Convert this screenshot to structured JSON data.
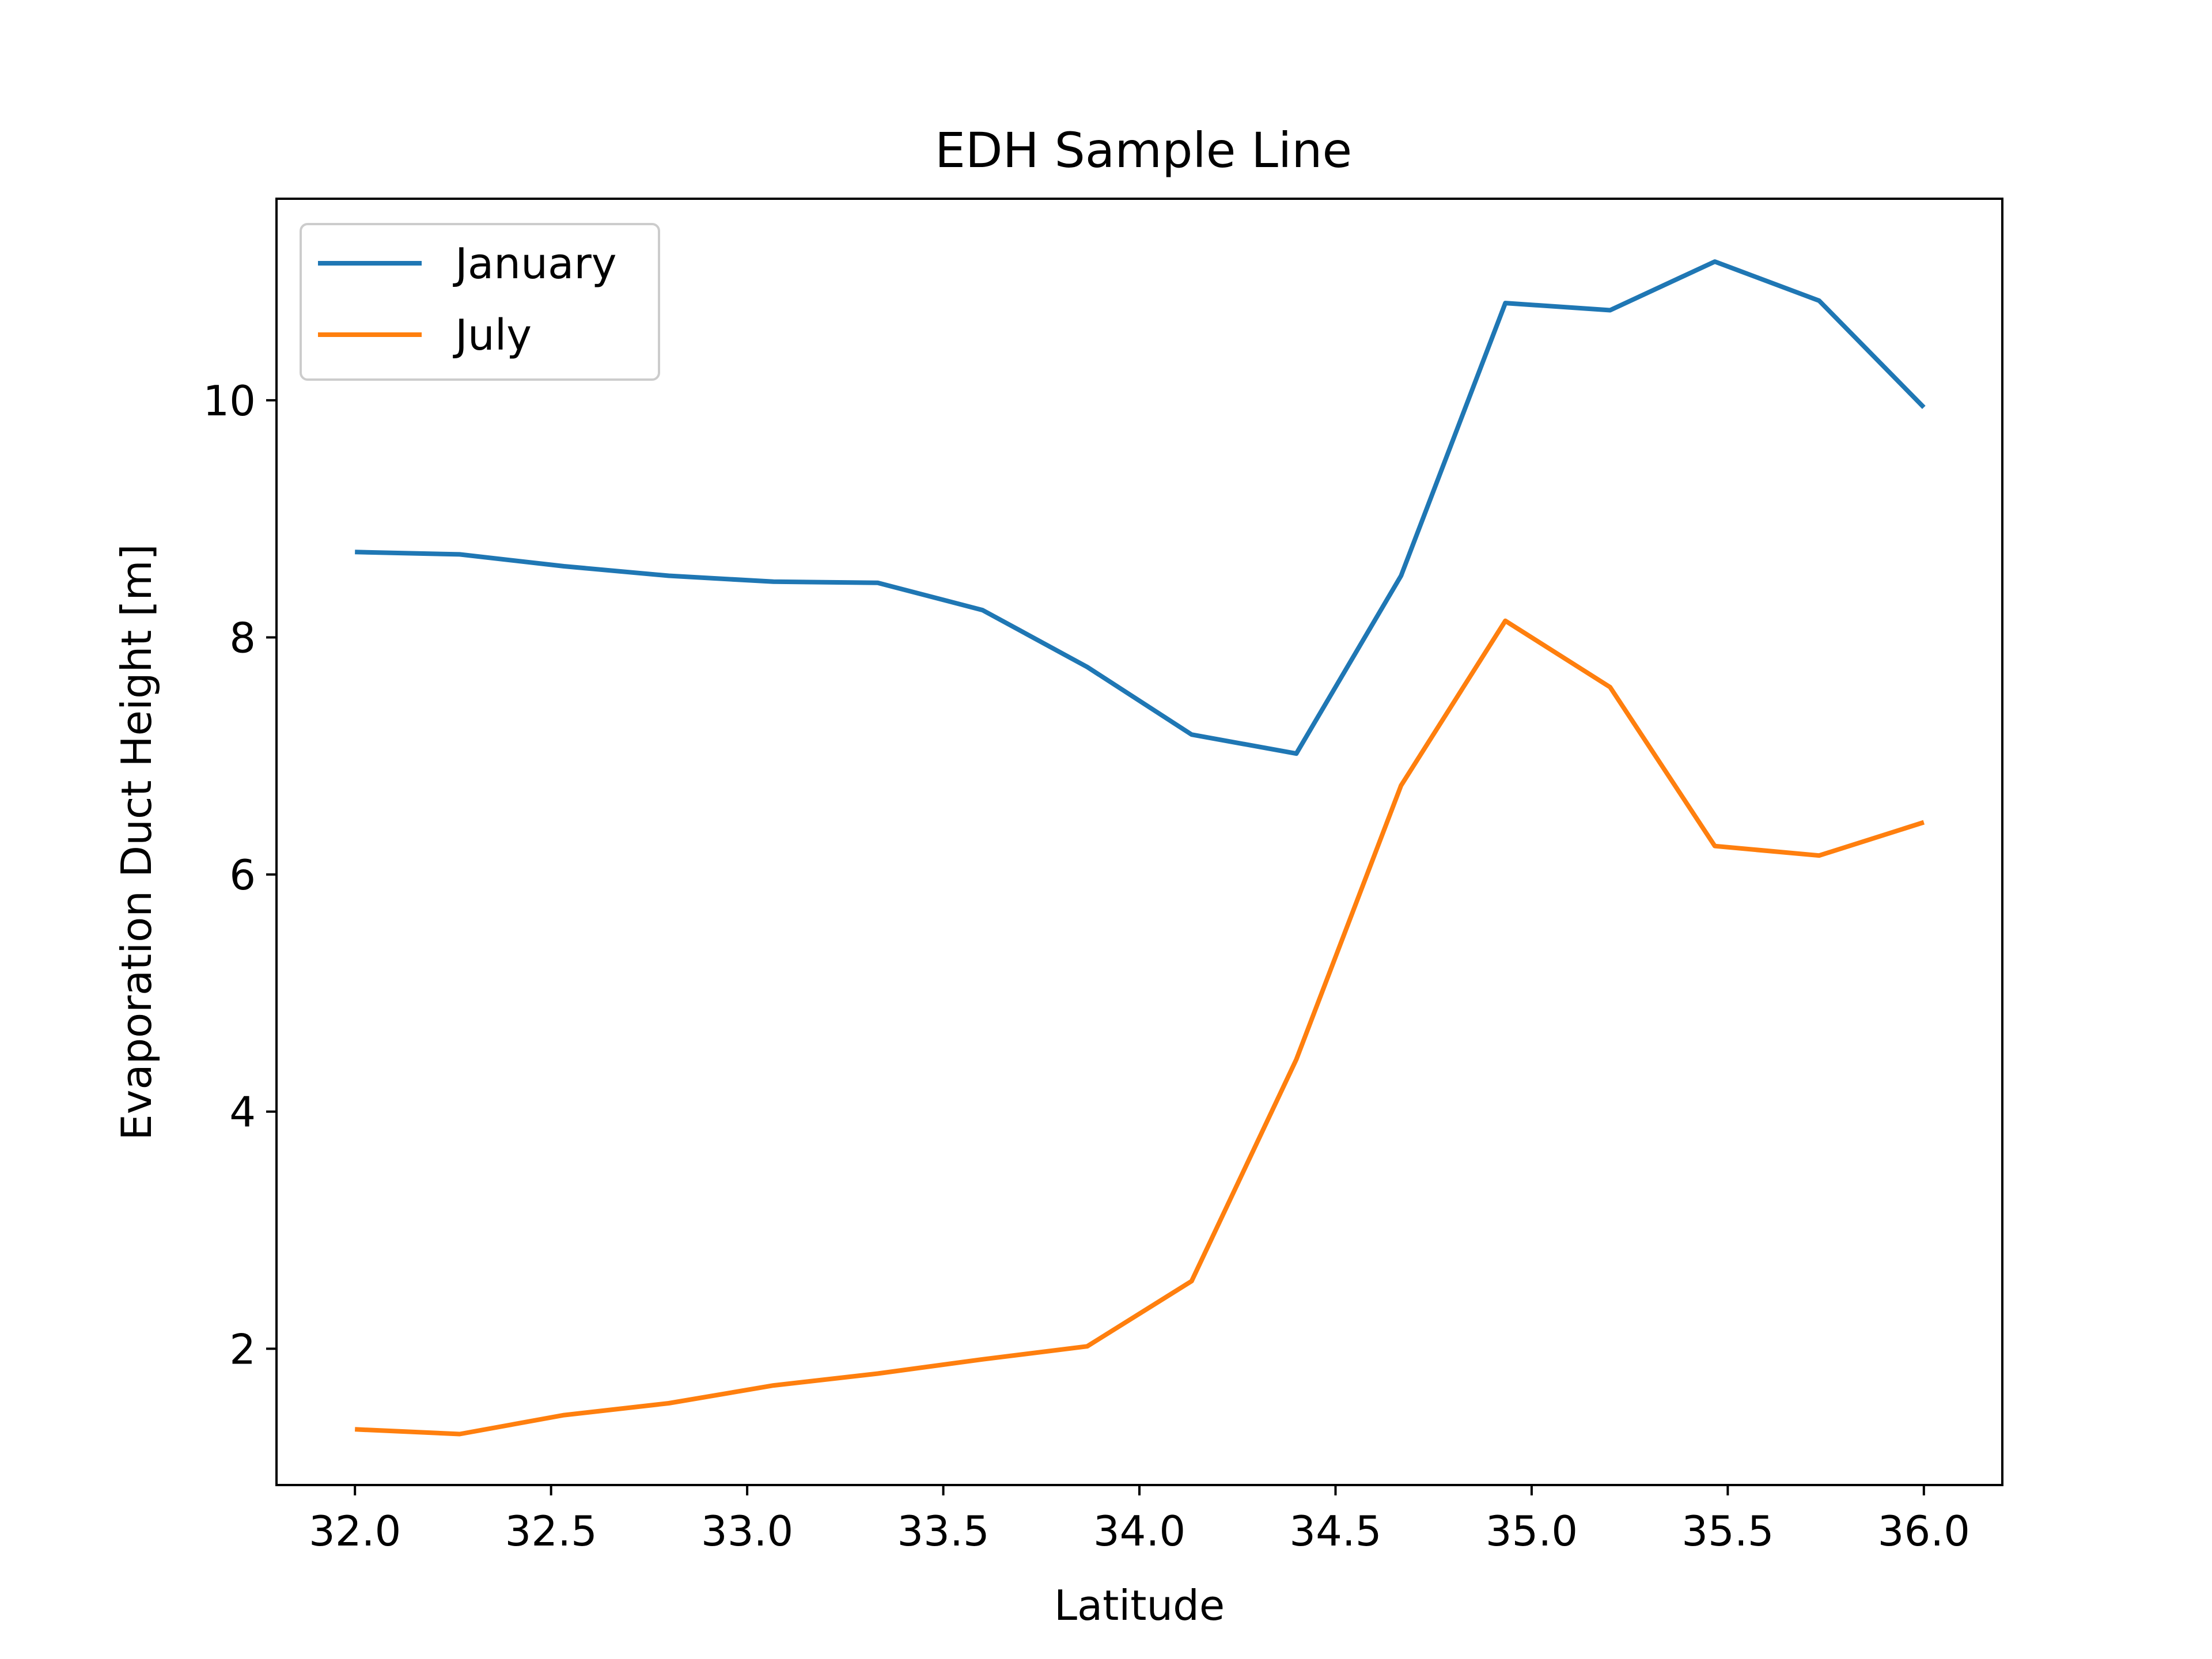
{
  "chart_data": {
    "type": "line",
    "title": "EDH Sample Line",
    "xlabel": "Latitude",
    "ylabel": "Evaporation Duct Height [m]",
    "xlim": [
      31.8,
      36.2
    ],
    "ylim": [
      0.85,
      11.7
    ],
    "xticks": [
      32.0,
      32.5,
      33.0,
      33.5,
      34.0,
      34.5,
      35.0,
      35.5,
      36.0
    ],
    "xtick_labels": [
      "32.0",
      "32.5",
      "33.0",
      "33.5",
      "34.0",
      "34.5",
      "35.0",
      "35.5",
      "36.0"
    ],
    "yticks": [
      2,
      4,
      6,
      8,
      10
    ],
    "ytick_labels": [
      "2",
      "4",
      "6",
      "8",
      "10"
    ],
    "grid": false,
    "legend_position": "top-left",
    "x": [
      32.0,
      32.267,
      32.533,
      32.8,
      33.067,
      33.333,
      33.6,
      33.867,
      34.133,
      34.4,
      34.667,
      34.933,
      35.2,
      35.467,
      35.733,
      36.0
    ],
    "series": [
      {
        "name": "January",
        "color": "#1f77b4",
        "values": [
          8.72,
          8.7,
          8.6,
          8.52,
          8.47,
          8.46,
          8.23,
          7.75,
          7.18,
          7.02,
          8.52,
          10.82,
          10.76,
          11.17,
          10.84,
          9.94
        ]
      },
      {
        "name": "July",
        "color": "#ff7f0e",
        "values": [
          1.32,
          1.28,
          1.44,
          1.54,
          1.69,
          1.79,
          1.91,
          2.02,
          2.57,
          4.44,
          6.75,
          8.14,
          7.58,
          6.24,
          6.16,
          6.44
        ]
      }
    ]
  }
}
